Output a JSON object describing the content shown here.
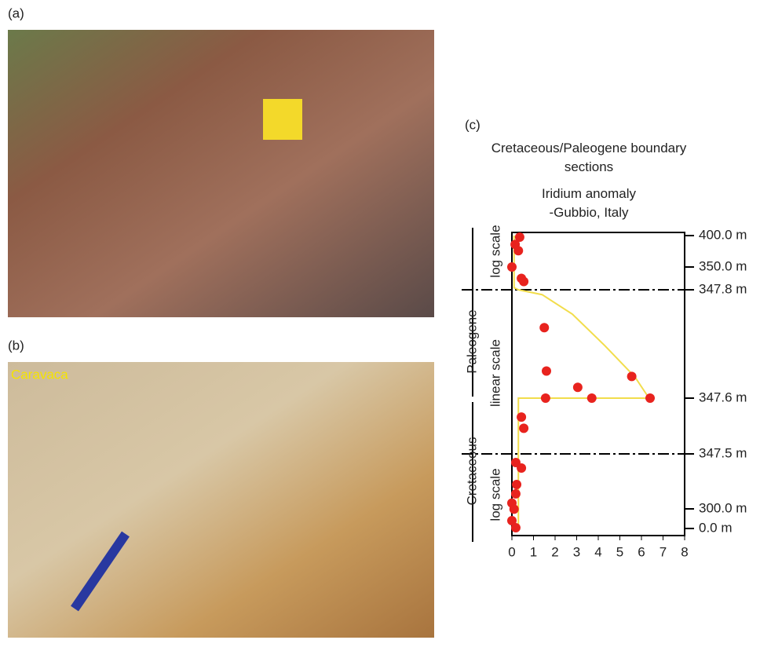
{
  "panels": [
    {
      "label": "(a)"
    },
    {
      "label": "(b)",
      "annotation": "Caravaca"
    }
  ],
  "chart_data": {
    "type": "scatter",
    "panel_label": "(c)",
    "title": "Cretaceous/Paleogene boundary sections",
    "subtitle": "Iridium anomaly -Gubbio, Italy",
    "xlim": [
      0,
      8
    ],
    "xticks": [
      0,
      1,
      2,
      3,
      4,
      5,
      6,
      7,
      8
    ],
    "ylim": [
      0,
      400
    ],
    "yticks": [
      {
        "value": 400,
        "label": "400.0 m"
      },
      {
        "value": 350,
        "label": "350.0 m"
      },
      {
        "value": 347.8,
        "label": "347.8 m"
      },
      {
        "value": 347.6,
        "label": "347.6 m"
      },
      {
        "value": 347.5,
        "label": "347.5 m"
      },
      {
        "value": 300,
        "label": "300.0 m"
      },
      {
        "value": 0,
        "label": "0.0 m"
      }
    ],
    "boundaries": [
      347.8,
      347.5
    ],
    "eras": [
      "Paleogene",
      "Cretaceous"
    ],
    "scale_labels": [
      "log scale",
      "linear scale",
      "log scale"
    ],
    "series": [
      {
        "type": "scatter",
        "color": "#e8231e",
        "x": [
          0.36,
          0.15,
          0.3,
          0,
          0.44,
          0.55,
          1.5,
          1.6,
          3.05,
          3.7,
          5.55,
          6.4,
          1.56,
          0.44,
          0.55,
          0.18,
          0.44,
          0.22,
          0.18,
          0,
          0.1,
          0,
          0.18
        ],
        "values": [
          397.5,
          386,
          376,
          350,
          348.9,
          348.6,
          347.73,
          347.65,
          347.62,
          347.6,
          347.64,
          347.6,
          347.6,
          347.566,
          347.546,
          340,
          335.3,
          321,
          313,
          305,
          295,
          120,
          12
        ]
      },
      {
        "type": "line",
        "color": "#f2dd4c",
        "x": [
          0.1,
          0.1,
          0.3,
          1.4,
          2.8,
          4.3,
          5.7,
          6.35,
          0.3,
          0.3,
          0.3
        ],
        "values": [
          400,
          348,
          347.8,
          347.791,
          347.755,
          347.697,
          347.639,
          347.6,
          347.6,
          347.5,
          0
        ]
      }
    ]
  }
}
